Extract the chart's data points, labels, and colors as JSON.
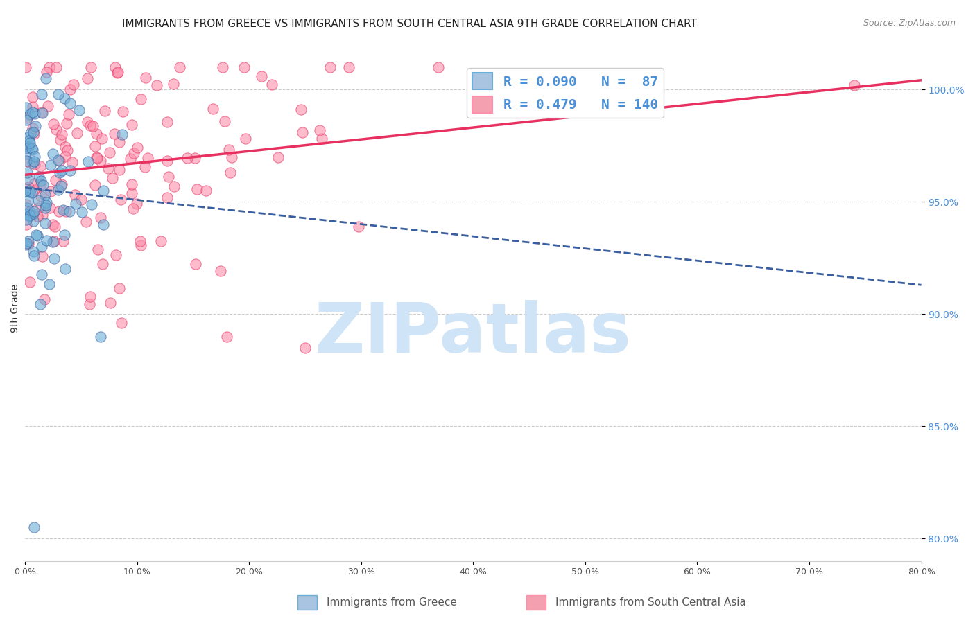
{
  "title": "IMMIGRANTS FROM GREECE VS IMMIGRANTS FROM SOUTH CENTRAL ASIA 9TH GRADE CORRELATION CHART",
  "source": "Source: ZipAtlas.com",
  "ylabel": "9th Grade",
  "y_ticks": [
    80.0,
    85.0,
    90.0,
    95.0,
    100.0
  ],
  "x_lim": [
    0.0,
    80.0
  ],
  "y_lim": [
    79.0,
    101.5
  ],
  "greece_color": "#6baed6",
  "sca_color": "#fc8faa",
  "greece_line_color": "#3a5fa0",
  "sca_line_color": "#e83060",
  "watermark": "ZIPatlas",
  "watermark_color": "#d0e4f7",
  "title_fontsize": 11,
  "greece_R": 0.09,
  "greece_N": 87,
  "sca_R": 0.479,
  "sca_N": 140,
  "seed": 42
}
